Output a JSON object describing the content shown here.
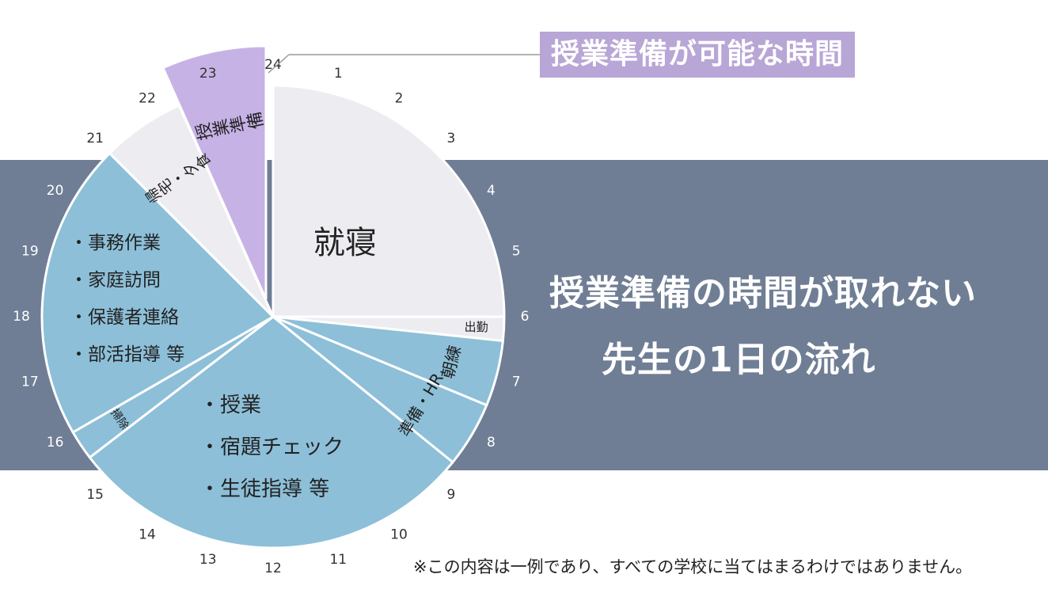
{
  "chart_data": {
    "type": "pie",
    "title": "授業準備の時間が取れない 先生の1日の流れ",
    "headline_lines": [
      "授業準備の時間が取れない",
      "先生の1日の流れ"
    ],
    "callout": "授業準備が可能な時間",
    "note": "※この内容は一例であり、すべての学校に当てはまるわけではありません。",
    "hours": [
      "1",
      "2",
      "3",
      "4",
      "5",
      "6",
      "7",
      "8",
      "9",
      "10",
      "11",
      "12",
      "13",
      "14",
      "15",
      "16",
      "17",
      "18",
      "19",
      "20",
      "21",
      "22",
      "23",
      "24"
    ],
    "slices": [
      {
        "key": "sleep",
        "label": "就寝",
        "start": 0,
        "end": 6,
        "color": "#ececf1"
      },
      {
        "key": "commute",
        "label": "出勤",
        "start": 6,
        "end": 6.4,
        "color": "#ececf1"
      },
      {
        "key": "morning",
        "label": "朝練",
        "start": 6.4,
        "end": 7.5,
        "color": "#8dbfd8"
      },
      {
        "key": "prep-hr",
        "label": "準備・HR",
        "start": 7.5,
        "end": 8.6,
        "color": "#8dbfd8"
      },
      {
        "key": "classes",
        "label": "",
        "start": 8.6,
        "end": 15.5,
        "color": "#8dbfd8"
      },
      {
        "key": "cleaning",
        "label": "掃除",
        "start": 15.5,
        "end": 16,
        "color": "#8dbfd8"
      },
      {
        "key": "admin",
        "label": "",
        "start": 16,
        "end": 21,
        "color": "#8dbfd8"
      },
      {
        "key": "home",
        "label": "帰宅・夕食",
        "start": 21,
        "end": 22.4,
        "color": "#ececf1"
      },
      {
        "key": "lesson-prep",
        "label": "授業準備",
        "start": 22.4,
        "end": 24,
        "color": "#c7b2e6",
        "exploded": true
      }
    ],
    "class_items": [
      "・授業",
      "・宿題チェック",
      "・生徒指導 等"
    ],
    "admin_items": [
      "・事務作業",
      "・家庭訪問",
      "・保護者連絡",
      "・部活指導 等"
    ]
  }
}
